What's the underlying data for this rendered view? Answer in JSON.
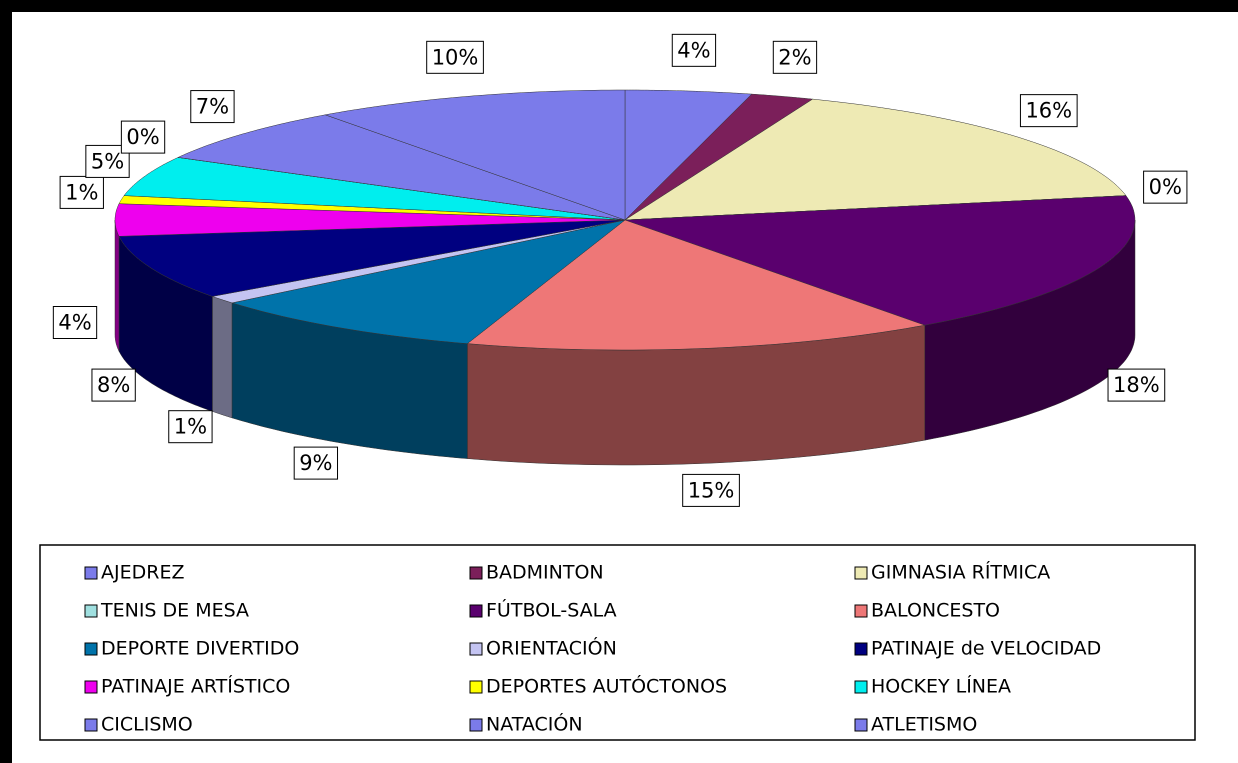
{
  "chart_data": {
    "type": "pie3d",
    "categories": [
      "AJEDREZ",
      "BADMINTON",
      "GIMNASIA RÍTMICA",
      "TENIS DE MESA",
      "FÚTBOL-SALA",
      "BALONCESTO",
      "DEPORTE DIVERTIDO",
      "ORIENTACIÓN",
      "PATINAJE de VELOCIDAD",
      "PATINAJE ARTÍSTICO",
      "DEPORTES AUTÓCTONOS",
      "HOCKEY LÍNEA",
      "CICLISMO",
      "NATACIÓN",
      "ATLETISMO"
    ],
    "values": [
      4,
      2,
      16,
      0,
      18,
      15,
      9,
      1,
      8,
      4,
      1,
      5,
      0,
      7,
      10
    ],
    "value_labels": [
      "4%",
      "2%",
      "16%",
      "0%",
      "18%",
      "15%",
      "9%",
      "1%",
      "8%",
      "4%",
      "1%",
      "5%",
      "0%",
      "7%",
      "10%"
    ],
    "colors": [
      "#7b7bea",
      "#7b1f5a",
      "#eeeab4",
      "#a0e0e0",
      "#5a006e",
      "#ee7777",
      "#0073aa",
      "#c4c4f2",
      "#000080",
      "#ee00ee",
      "#ffff00",
      "#00eeee",
      "#7b7bea",
      "#7b7bea",
      "#7b7bea"
    ],
    "legend": "bottom"
  }
}
